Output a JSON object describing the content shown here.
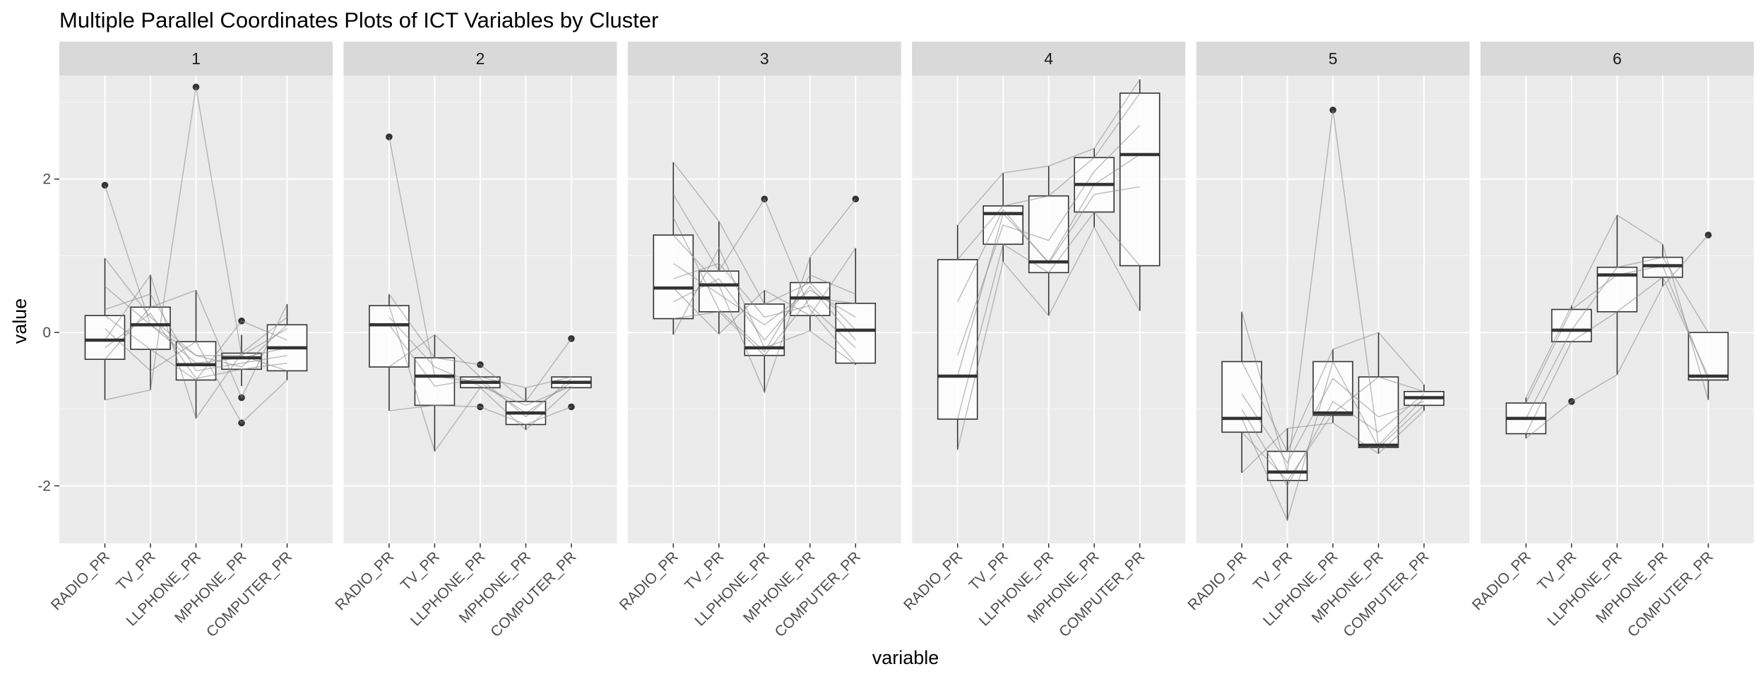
{
  "chart_data": {
    "type": "boxplot",
    "title": "Multiple Parallel Coordinates Plots of ICT Variables by Cluster",
    "xlabel": "variable",
    "ylabel": "value",
    "ylim": [
      -2.75,
      3.35
    ],
    "yticks": [
      -2,
      0,
      2
    ],
    "categories": [
      "RADIO_PR",
      "TV_PR",
      "LLPHONE_PR",
      "MPHONE_PR",
      "COMPUTER_PR"
    ],
    "grid": true,
    "legend": "none",
    "panels": [
      {
        "label": "1",
        "boxes": [
          {
            "q1": -0.35,
            "median": -0.1,
            "q3": 0.22,
            "whisker_low": -0.88,
            "whisker_high": 0.97,
            "outliers": [
              1.92
            ]
          },
          {
            "q1": -0.22,
            "median": 0.1,
            "q3": 0.33,
            "whisker_low": -0.75,
            "whisker_high": 0.75,
            "outliers": []
          },
          {
            "q1": -0.62,
            "median": -0.42,
            "q3": -0.12,
            "whisker_low": -1.12,
            "whisker_high": 0.55,
            "outliers": [
              3.2
            ]
          },
          {
            "q1": -0.48,
            "median": -0.33,
            "q3": -0.27,
            "whisker_low": -0.7,
            "whisker_high": -0.03,
            "outliers": [
              0.15,
              -0.85,
              -1.18
            ]
          },
          {
            "q1": -0.5,
            "median": -0.2,
            "q3": 0.1,
            "whisker_low": -0.62,
            "whisker_high": 0.37,
            "outliers": []
          }
        ],
        "lines": [
          [
            1.92,
            0.1,
            -0.4,
            -0.33,
            -0.2
          ],
          [
            0.97,
            0.2,
            -0.3,
            -0.45,
            0.1
          ],
          [
            -0.88,
            -0.75,
            3.2,
            -0.3,
            -0.5
          ],
          [
            -0.35,
            0.33,
            0.55,
            -0.85,
            0.37
          ],
          [
            0.22,
            -0.22,
            -0.62,
            0.15,
            -0.1
          ],
          [
            -0.1,
            0.75,
            -1.12,
            -0.27,
            0.2
          ],
          [
            0.05,
            -0.5,
            -0.12,
            -1.18,
            -0.62
          ],
          [
            0.3,
            0.5,
            -0.5,
            -0.4,
            -0.3
          ],
          [
            -0.2,
            0.25,
            -0.6,
            -0.48,
            -0.4
          ],
          [
            0.6,
            0.1,
            -0.3,
            -0.3,
            0.05
          ]
        ]
      },
      {
        "label": "2",
        "boxes": [
          {
            "q1": -0.45,
            "median": 0.1,
            "q3": 0.35,
            "whisker_low": -1.02,
            "whisker_high": 0.5,
            "outliers": [
              2.55
            ]
          },
          {
            "q1": -0.95,
            "median": -0.57,
            "q3": -0.33,
            "whisker_low": -1.55,
            "whisker_high": -0.03,
            "outliers": []
          },
          {
            "q1": -0.72,
            "median": -0.65,
            "q3": -0.58,
            "whisker_low": -0.72,
            "whisker_high": -0.58,
            "outliers": [
              -0.42,
              -0.97
            ]
          },
          {
            "q1": -1.2,
            "median": -1.05,
            "q3": -0.9,
            "whisker_low": -1.27,
            "whisker_high": -0.72,
            "outliers": []
          },
          {
            "q1": -0.72,
            "median": -0.65,
            "q3": -0.58,
            "whisker_low": -0.72,
            "whisker_high": -0.58,
            "outliers": [
              -0.08,
              -0.97
            ]
          }
        ],
        "lines": [
          [
            2.55,
            -0.57,
            -0.65,
            -1.05,
            -0.65
          ],
          [
            0.5,
            -0.33,
            -0.42,
            -0.9,
            -0.08
          ],
          [
            -1.02,
            -0.95,
            -0.97,
            -1.2,
            -0.97
          ],
          [
            0.35,
            -1.55,
            -0.72,
            -1.27,
            -0.72
          ],
          [
            -0.45,
            -0.03,
            -0.58,
            -0.72,
            -0.58
          ],
          [
            0.1,
            -0.7,
            -0.6,
            -1.1,
            -0.6
          ],
          [
            0.2,
            -0.45,
            -0.7,
            -0.95,
            -0.7
          ]
        ]
      },
      {
        "label": "3",
        "boxes": [
          {
            "q1": 0.18,
            "median": 0.58,
            "q3": 1.27,
            "whisker_low": -0.03,
            "whisker_high": 2.22,
            "outliers": []
          },
          {
            "q1": 0.27,
            "median": 0.62,
            "q3": 0.8,
            "whisker_low": -0.02,
            "whisker_high": 1.45,
            "outliers": []
          },
          {
            "q1": -0.3,
            "median": -0.2,
            "q3": 0.37,
            "whisker_low": -0.78,
            "whisker_high": 0.55,
            "outliers": [
              1.74
            ]
          },
          {
            "q1": 0.22,
            "median": 0.45,
            "q3": 0.65,
            "whisker_low": 0.02,
            "whisker_high": 0.98,
            "outliers": []
          },
          {
            "q1": -0.4,
            "median": 0.03,
            "q3": 0.38,
            "whisker_low": -0.42,
            "whisker_high": 1.1,
            "outliers": [
              1.74
            ]
          }
        ],
        "lines": [
          [
            2.22,
            1.45,
            0.37,
            0.65,
            0.03
          ],
          [
            1.8,
            0.8,
            1.74,
            0.3,
            -0.4
          ],
          [
            1.27,
            0.62,
            -0.78,
            0.98,
            1.74
          ],
          [
            0.58,
            -0.02,
            0.55,
            0.22,
            1.1
          ],
          [
            0.18,
            0.27,
            -0.3,
            0.45,
            0.38
          ],
          [
            -0.03,
            1.1,
            -0.2,
            0.02,
            -0.42
          ],
          [
            0.9,
            0.5,
            0.1,
            0.55,
            0.2
          ],
          [
            0.4,
            0.7,
            -0.1,
            0.6,
            -0.1
          ],
          [
            1.5,
            0.3,
            -0.25,
            0.75,
            0.5
          ],
          [
            0.7,
            0.9,
            0.2,
            0.35,
            -0.2
          ]
        ]
      },
      {
        "label": "4",
        "boxes": [
          {
            "q1": -1.13,
            "median": -0.57,
            "q3": 0.95,
            "whisker_low": -1.53,
            "whisker_high": 1.4,
            "outliers": []
          },
          {
            "q1": 1.15,
            "median": 1.55,
            "q3": 1.65,
            "whisker_low": 0.92,
            "whisker_high": 2.08,
            "outliers": []
          },
          {
            "q1": 0.78,
            "median": 0.92,
            "q3": 1.78,
            "whisker_low": 0.22,
            "whisker_high": 2.17,
            "outliers": []
          },
          {
            "q1": 1.57,
            "median": 1.93,
            "q3": 2.28,
            "whisker_low": 1.37,
            "whisker_high": 2.4,
            "outliers": []
          },
          {
            "q1": 0.87,
            "median": 2.32,
            "q3": 3.12,
            "whisker_low": 0.28,
            "whisker_high": 3.3,
            "outliers": []
          }
        ],
        "lines": [
          [
            1.4,
            2.08,
            2.17,
            2.4,
            3.3
          ],
          [
            0.95,
            1.65,
            1.78,
            2.28,
            3.12
          ],
          [
            -0.57,
            1.55,
            0.92,
            1.93,
            2.32
          ],
          [
            -1.13,
            1.15,
            0.78,
            1.57,
            0.87
          ],
          [
            -1.53,
            0.92,
            0.22,
            1.37,
            0.28
          ],
          [
            -0.3,
            1.4,
            1.2,
            2.1,
            2.7
          ],
          [
            0.4,
            1.6,
            0.9,
            1.8,
            1.9
          ]
        ]
      },
      {
        "label": "5",
        "boxes": [
          {
            "q1": -1.3,
            "median": -1.12,
            "q3": -0.38,
            "whisker_low": -1.83,
            "whisker_high": 0.27,
            "outliers": []
          },
          {
            "q1": -1.93,
            "median": -1.82,
            "q3": -1.55,
            "whisker_low": -2.45,
            "whisker_high": -1.25,
            "outliers": []
          },
          {
            "q1": -1.08,
            "median": -1.05,
            "q3": -0.38,
            "whisker_low": -1.18,
            "whisker_high": -0.22,
            "outliers": [
              2.9
            ]
          },
          {
            "q1": -1.5,
            "median": -1.47,
            "q3": -0.58,
            "whisker_low": -1.58,
            "whisker_high": 0.0,
            "outliers": []
          },
          {
            "q1": -0.95,
            "median": -0.85,
            "q3": -0.77,
            "whisker_low": -1.02,
            "whisker_high": -0.68,
            "outliers": []
          }
        ],
        "lines": [
          [
            0.27,
            -1.82,
            2.9,
            -1.47,
            -0.85
          ],
          [
            -0.38,
            -1.55,
            -0.22,
            0.0,
            -0.68
          ],
          [
            -1.12,
            -2.45,
            -0.38,
            -1.5,
            -0.95
          ],
          [
            -1.3,
            -1.93,
            -1.05,
            -0.58,
            -0.77
          ],
          [
            -1.83,
            -1.25,
            -1.18,
            -1.58,
            -1.02
          ],
          [
            -0.8,
            -1.7,
            -0.6,
            -1.1,
            -0.9
          ],
          [
            -1.0,
            -2.0,
            -0.9,
            -1.3,
            -0.8
          ]
        ]
      },
      {
        "label": "6",
        "boxes": [
          {
            "q1": -1.32,
            "median": -1.12,
            "q3": -0.92,
            "whisker_low": -1.38,
            "whisker_high": -0.85,
            "outliers": []
          },
          {
            "q1": -0.12,
            "median": 0.03,
            "q3": 0.3,
            "whisker_low": -0.12,
            "whisker_high": 0.35,
            "outliers": [
              -0.9
            ]
          },
          {
            "q1": 0.27,
            "median": 0.75,
            "q3": 0.85,
            "whisker_low": -0.55,
            "whisker_high": 1.53,
            "outliers": []
          },
          {
            "q1": 0.72,
            "median": 0.87,
            "q3": 0.98,
            "whisker_low": 0.6,
            "whisker_high": 1.15,
            "outliers": []
          },
          {
            "q1": -0.62,
            "median": -0.57,
            "q3": 0.0,
            "whisker_low": -0.88,
            "whisker_high": 0.0,
            "outliers": [
              1.27
            ]
          }
        ],
        "lines": [
          [
            -0.85,
            0.35,
            1.53,
            1.15,
            -0.88
          ],
          [
            -1.12,
            0.03,
            0.85,
            0.98,
            0.0
          ],
          [
            -1.32,
            -0.12,
            0.27,
            0.72,
            -0.57
          ],
          [
            -1.38,
            -0.9,
            -0.55,
            0.6,
            1.27
          ],
          [
            -0.92,
            0.3,
            0.75,
            0.87,
            -0.62
          ]
        ]
      }
    ]
  }
}
